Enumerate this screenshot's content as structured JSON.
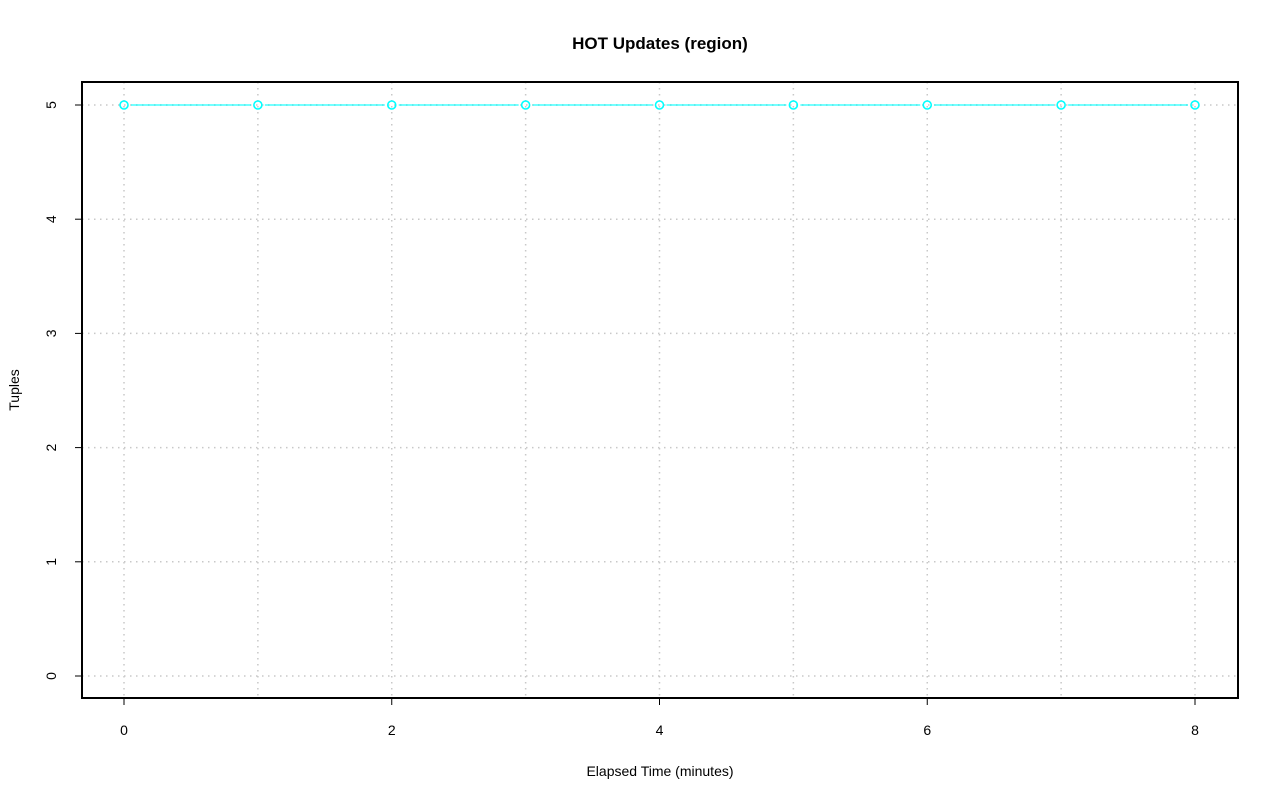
{
  "chart_data": {
    "type": "line",
    "title": "HOT Updates (region)",
    "xlabel": "Elapsed Time (minutes)",
    "ylabel": "Tuples",
    "xlim": [
      0,
      8
    ],
    "ylim": [
      0,
      5
    ],
    "x_ticks": [
      0,
      2,
      4,
      6,
      8
    ],
    "y_ticks": [
      0,
      1,
      2,
      3,
      4,
      5
    ],
    "grid": true,
    "grid_x": [
      0,
      1,
      2,
      3,
      4,
      5,
      6,
      7,
      8
    ],
    "series": [
      {
        "color": "#00ffff",
        "marker": "open-circle",
        "x": [
          0,
          1,
          2,
          3,
          4,
          5,
          6,
          7,
          8
        ],
        "y": [
          5,
          5,
          5,
          5,
          5,
          5,
          5,
          5,
          5
        ]
      }
    ]
  }
}
